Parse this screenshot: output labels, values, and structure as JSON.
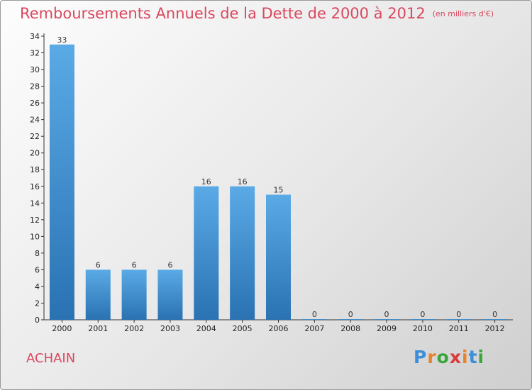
{
  "title": "Remboursements Annuels de la Dette de 2000 à 2012",
  "subtitle": "(en milliers d'€)",
  "commune": "ACHAIN",
  "logo": {
    "letters": [
      "P",
      "r",
      "o",
      "x",
      "i",
      "t",
      "i"
    ],
    "colors": [
      "#3a8fd8",
      "#e8832a",
      "#3aa63a",
      "#d93a3a",
      "#e8832a",
      "#3a8fd8",
      "#3aa63a"
    ]
  },
  "colors": {
    "title": "#d9485f",
    "bar_top": "#5aaae6",
    "bar_bottom": "#2a72b2"
  },
  "chart_data": {
    "type": "bar",
    "categories": [
      "2000",
      "2001",
      "2002",
      "2003",
      "2004",
      "2005",
      "2006",
      "2007",
      "2008",
      "2009",
      "2010",
      "2011",
      "2012"
    ],
    "values": [
      33,
      6,
      6,
      6,
      16,
      16,
      15,
      0,
      0,
      0,
      0,
      0,
      0
    ],
    "data_labels": [
      "33",
      "6",
      "6",
      "6",
      "16",
      "16",
      "15",
      "0",
      "0",
      "0",
      "0",
      "0",
      "0"
    ],
    "ylim": [
      0,
      34
    ],
    "yticks": [
      "0",
      "2",
      "4",
      "6",
      "8",
      "10",
      "12",
      "14",
      "16",
      "18",
      "20",
      "22",
      "24",
      "26",
      "28",
      "30",
      "32",
      "34"
    ],
    "grid": false,
    "legend": "none"
  }
}
